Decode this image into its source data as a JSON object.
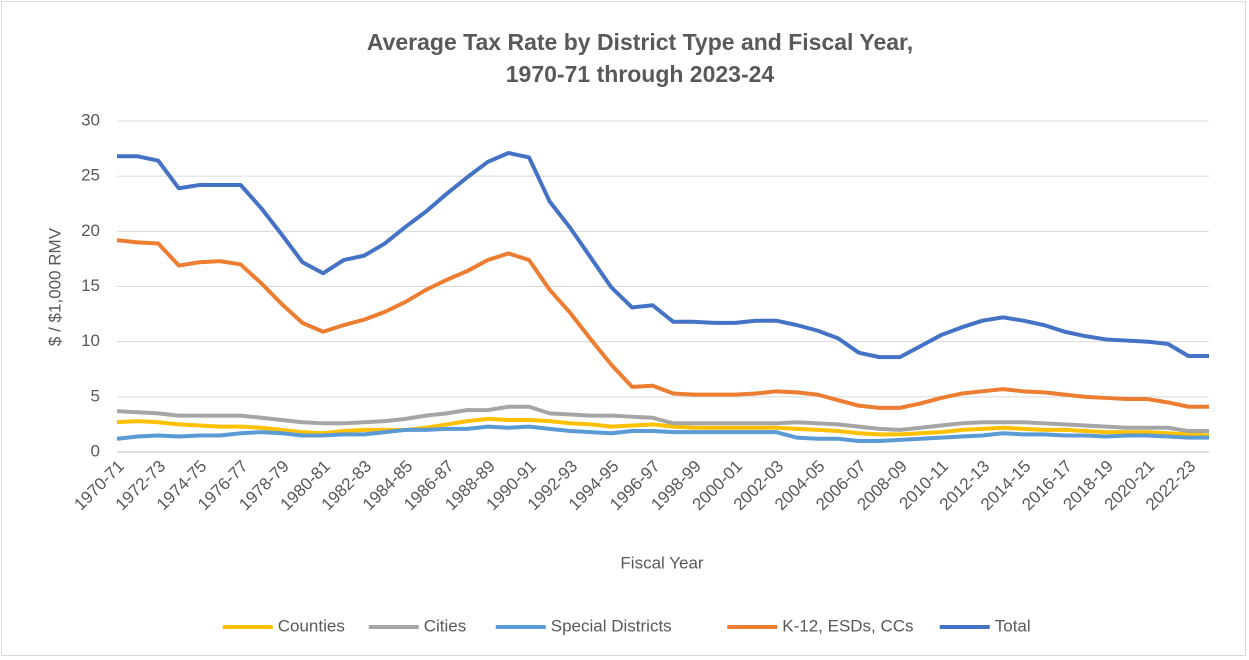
{
  "chart_data": {
    "type": "line",
    "title": "Average Tax Rate by District Type and Fiscal Year,",
    "subtitle": "1970-71 through 2023-24",
    "x_label": "Fiscal Year",
    "y_label": "$ / $1,000 RMV",
    "categories": [
      "1970-71",
      null,
      "1972-73",
      null,
      "1974-75",
      null,
      "1976-77",
      null,
      "1978-79",
      null,
      "1980-81",
      null,
      "1982-83",
      null,
      "1984-85",
      null,
      "1986-87",
      null,
      "1988-89",
      null,
      "1990-91",
      null,
      "1992-93",
      null,
      "1994-95",
      null,
      "1996-97",
      null,
      "1998-99",
      null,
      "2000-01",
      null,
      "2002-03",
      null,
      "2004-05",
      null,
      "2006-07",
      null,
      "2008-09",
      null,
      "2010-11",
      null,
      "2012-13",
      null,
      "2014-15",
      null,
      "2016-17",
      null,
      "2018-19",
      null,
      "2020-21",
      null,
      "2022-23",
      null
    ],
    "series": [
      {
        "name": "Counties",
        "color": "#ffc000",
        "values": [
          2.7,
          2.8,
          2.7,
          2.5,
          2.4,
          2.3,
          2.3,
          2.2,
          2.0,
          1.8,
          1.7,
          1.9,
          2.0,
          2.0,
          2.0,
          2.2,
          2.5,
          2.8,
          3.0,
          2.9,
          2.9,
          2.8,
          2.6,
          2.5,
          2.3,
          2.4,
          2.5,
          2.3,
          2.2,
          2.2,
          2.2,
          2.2,
          2.2,
          2.1,
          2.0,
          1.9,
          1.7,
          1.6,
          1.6,
          1.7,
          1.8,
          2.0,
          2.1,
          2.2,
          2.1,
          2.0,
          2.0,
          1.9,
          1.8,
          1.8,
          1.8,
          1.7,
          1.6,
          1.5
        ]
      },
      {
        "name": "Cities",
        "color": "#a5a5a5",
        "values": [
          3.7,
          3.6,
          3.5,
          3.3,
          3.3,
          3.3,
          3.3,
          3.1,
          2.9,
          2.7,
          2.6,
          2.6,
          2.7,
          2.8,
          3.0,
          3.3,
          3.5,
          3.8,
          3.8,
          4.1,
          4.1,
          3.5,
          3.4,
          3.3,
          3.3,
          3.2,
          3.1,
          2.6,
          2.6,
          2.6,
          2.6,
          2.6,
          2.6,
          2.7,
          2.6,
          2.5,
          2.3,
          2.1,
          2.0,
          2.2,
          2.4,
          2.6,
          2.7,
          2.7,
          2.7,
          2.6,
          2.5,
          2.4,
          2.3,
          2.2,
          2.2,
          2.2,
          1.9,
          1.9
        ]
      },
      {
        "name": "Special Districts",
        "color": "#5b9bd5",
        "values": [
          1.2,
          1.4,
          1.5,
          1.4,
          1.5,
          1.5,
          1.7,
          1.8,
          1.7,
          1.5,
          1.5,
          1.6,
          1.6,
          1.8,
          2.0,
          2.0,
          2.1,
          2.1,
          2.3,
          2.2,
          2.3,
          2.1,
          1.9,
          1.8,
          1.7,
          1.9,
          1.9,
          1.8,
          1.8,
          1.8,
          1.8,
          1.8,
          1.8,
          1.3,
          1.2,
          1.2,
          1.0,
          1.0,
          1.1,
          1.2,
          1.3,
          1.4,
          1.5,
          1.7,
          1.6,
          1.6,
          1.5,
          1.5,
          1.4,
          1.5,
          1.5,
          1.4,
          1.3,
          1.3
        ]
      },
      {
        "name": "K-12, ESDs, CCs",
        "color": "#ed7d31",
        "values": [
          19.2,
          19.0,
          18.9,
          16.9,
          17.2,
          17.3,
          17.0,
          15.3,
          13.4,
          11.7,
          10.9,
          11.5,
          12.0,
          12.7,
          13.6,
          14.7,
          15.6,
          16.4,
          17.4,
          18.0,
          17.4,
          14.7,
          12.6,
          10.2,
          7.9,
          5.9,
          6.0,
          5.3,
          5.2,
          5.2,
          5.2,
          5.3,
          5.5,
          5.4,
          5.2,
          4.7,
          4.2,
          4.0,
          4.0,
          4.4,
          4.9,
          5.3,
          5.5,
          5.7,
          5.5,
          5.4,
          5.2,
          5.0,
          4.9,
          4.8,
          4.8,
          4.5,
          4.1,
          4.1
        ]
      },
      {
        "name": "Total",
        "color": "#4472c4",
        "values": [
          26.8,
          26.8,
          26.4,
          23.9,
          24.2,
          24.2,
          24.2,
          22.1,
          19.7,
          17.2,
          16.2,
          17.4,
          17.8,
          18.9,
          20.4,
          21.8,
          23.4,
          24.9,
          26.3,
          27.1,
          26.7,
          22.7,
          20.3,
          17.6,
          14.9,
          13.1,
          13.3,
          11.8,
          11.8,
          11.7,
          11.7,
          11.9,
          11.9,
          11.5,
          11.0,
          10.3,
          9.0,
          8.6,
          8.6,
          9.6,
          10.6,
          11.3,
          11.9,
          12.2,
          11.9,
          11.5,
          10.9,
          10.5,
          10.2,
          10.1,
          10.0,
          9.8,
          8.7,
          8.7
        ]
      }
    ],
    "ylim": [
      0,
      30
    ],
    "yticks": [
      0,
      5,
      10,
      15,
      20,
      25,
      30
    ],
    "grid": true,
    "legend": "bottom"
  }
}
